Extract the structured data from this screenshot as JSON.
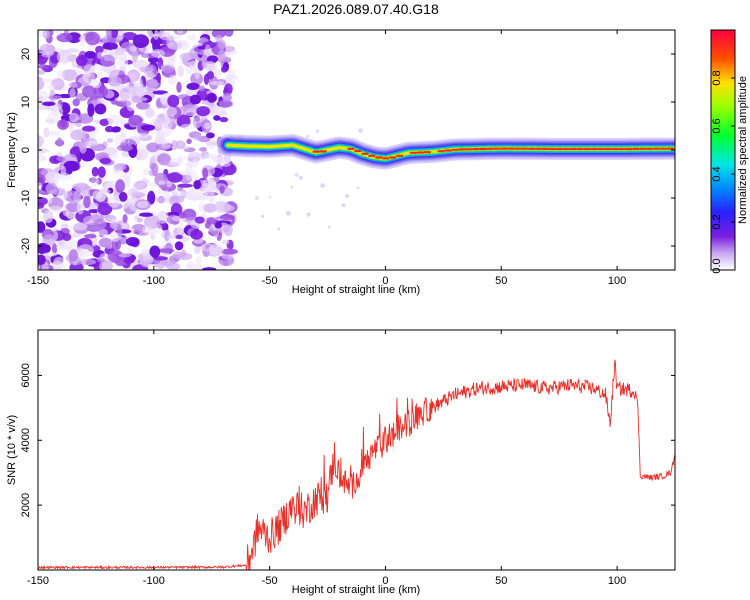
{
  "figure": {
    "title": "PAZ1.2026.089.07.40.G18"
  },
  "colors": {
    "snr_line": "#e8302a",
    "axis": "#000000",
    "background": "#ffffff"
  },
  "chart_data": [
    {
      "type": "heatmap",
      "name": "spectrogram",
      "xlabel": "Height of straight line (km)",
      "ylabel": "Frequency (Hz)",
      "xlim": [
        -150,
        125
      ],
      "ylim": [
        -25,
        25
      ],
      "x_ticks": [
        -150,
        -100,
        -50,
        0,
        50,
        100
      ],
      "y_ticks": [
        -20,
        -10,
        0,
        10,
        20
      ],
      "noise_region_x": [
        -150,
        -68
      ],
      "signal_start_x": -68,
      "signal_track": {
        "x": [
          -68,
          -60,
          -50,
          -40,
          -30,
          -20,
          -15,
          -10,
          -5,
          0,
          5,
          10,
          20,
          30,
          50,
          75,
          100,
          125
        ],
        "y": [
          1.0,
          0.8,
          0.7,
          1.0,
          -0.5,
          0.5,
          0.2,
          -0.8,
          -1.5,
          -1.8,
          -1.2,
          -0.6,
          -0.4,
          0.1,
          0.3,
          0.2,
          0.2,
          0.3
        ]
      },
      "colorbar": {
        "label": "Normalized spectral amplitude",
        "range": [
          0,
          1
        ],
        "ticks": [
          "0.0",
          "0.2",
          "0.4",
          "0.6",
          "0.8"
        ]
      }
    },
    {
      "type": "line",
      "name": "snr",
      "xlabel": "Height of straight line (km)",
      "ylabel": "SNR (10 * v/v)",
      "xlim": [
        -150,
        125
      ],
      "ylim": [
        0,
        7400
      ],
      "x_ticks": [
        -150,
        -100,
        -50,
        0,
        50,
        100
      ],
      "y_ticks": [
        2000,
        4000,
        6000
      ],
      "series": [
        {
          "name": "SNR",
          "x": [
            -150,
            -100,
            -70,
            -60,
            -57,
            -55,
            -50,
            -45,
            -40,
            -35,
            -30,
            -25,
            -22,
            -20,
            -15,
            -10,
            -5,
            0,
            5,
            10,
            15,
            20,
            25,
            30,
            35,
            40,
            50,
            60,
            70,
            80,
            90,
            95,
            97,
            99,
            100,
            105,
            108,
            109,
            110,
            115,
            120,
            123,
            125
          ],
          "y": [
            80,
            80,
            90,
            150,
            700,
            1300,
            1000,
            1400,
            2000,
            1800,
            2200,
            2300,
            3500,
            2900,
            2500,
            3100,
            3700,
            3900,
            4300,
            4500,
            4800,
            5000,
            5200,
            5400,
            5500,
            5600,
            5650,
            5700,
            5600,
            5700,
            5600,
            5400,
            4500,
            6400,
            5600,
            5550,
            5500,
            5000,
            2900,
            2850,
            2900,
            3000,
            3500
          ]
        }
      ]
    }
  ]
}
